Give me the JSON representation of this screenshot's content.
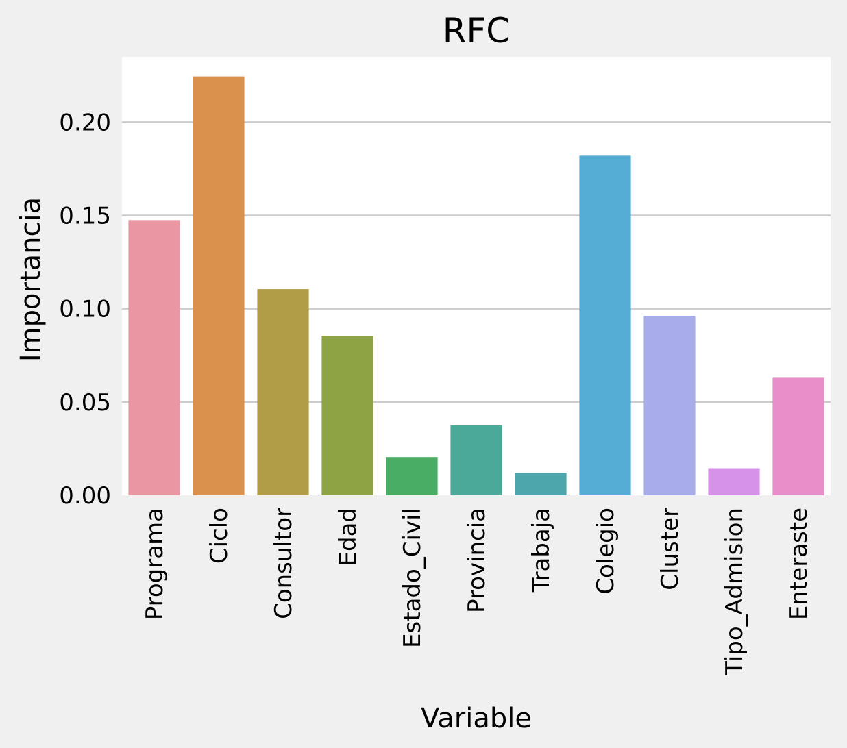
{
  "chart_data": {
    "type": "bar",
    "title": "RFC",
    "xlabel": "Variable",
    "ylabel": "Importancia",
    "categories": [
      "Programa",
      "Ciclo",
      "Consultor",
      "Edad",
      "Estado_Civil",
      "Provincia",
      "Trabaja",
      "Colegio",
      "Cluster",
      "Tipo_Admision",
      "Enteraste"
    ],
    "values": [
      0.1475,
      0.2245,
      0.1105,
      0.0855,
      0.0205,
      0.0375,
      0.012,
      0.182,
      0.0962,
      0.0145,
      0.063
    ],
    "colors": [
      "#ea96a3",
      "#db914e",
      "#b19d47",
      "#8ea343",
      "#4aad66",
      "#4ba999",
      "#4ca6ac",
      "#55acd4",
      "#a8adea",
      "#d592e6",
      "#e88ec8"
    ],
    "ylim": [
      0,
      0.235
    ],
    "yticks": [
      0.0,
      0.05,
      0.1,
      0.15,
      0.2
    ],
    "ytick_labels": [
      "0.00",
      "0.05",
      "0.10",
      "0.15",
      "0.20"
    ],
    "grid": "horizontal",
    "plot_background": "#ffffff",
    "figure_background": "#f0f0f0"
  }
}
